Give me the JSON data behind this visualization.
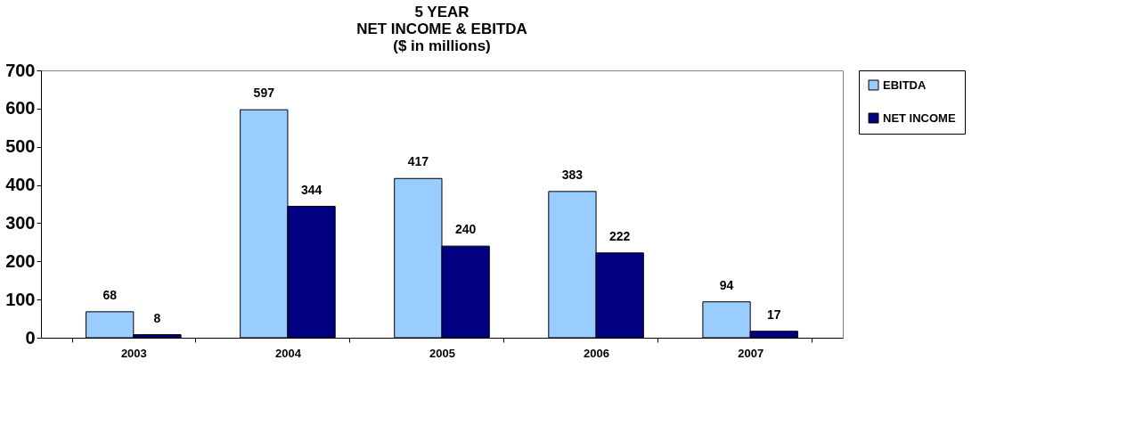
{
  "chart_data": {
    "type": "bar",
    "title": "5 YEAR\nNET INCOME & EBITDA\n($ in millions)",
    "categories": [
      "2003",
      "2004",
      "2005",
      "2006",
      "2007"
    ],
    "series": [
      {
        "name": "EBITDA",
        "color": "#99ccff",
        "values": [
          68,
          597,
          417,
          383,
          94
        ]
      },
      {
        "name": "NET INCOME",
        "color": "#000080",
        "values": [
          8,
          344,
          240,
          222,
          17
        ]
      }
    ],
    "ylim": [
      0,
      700
    ],
    "yticks": [
      0,
      100,
      200,
      300,
      400,
      500,
      600,
      700
    ],
    "grid": false,
    "legend": "right",
    "data_labels": true
  }
}
